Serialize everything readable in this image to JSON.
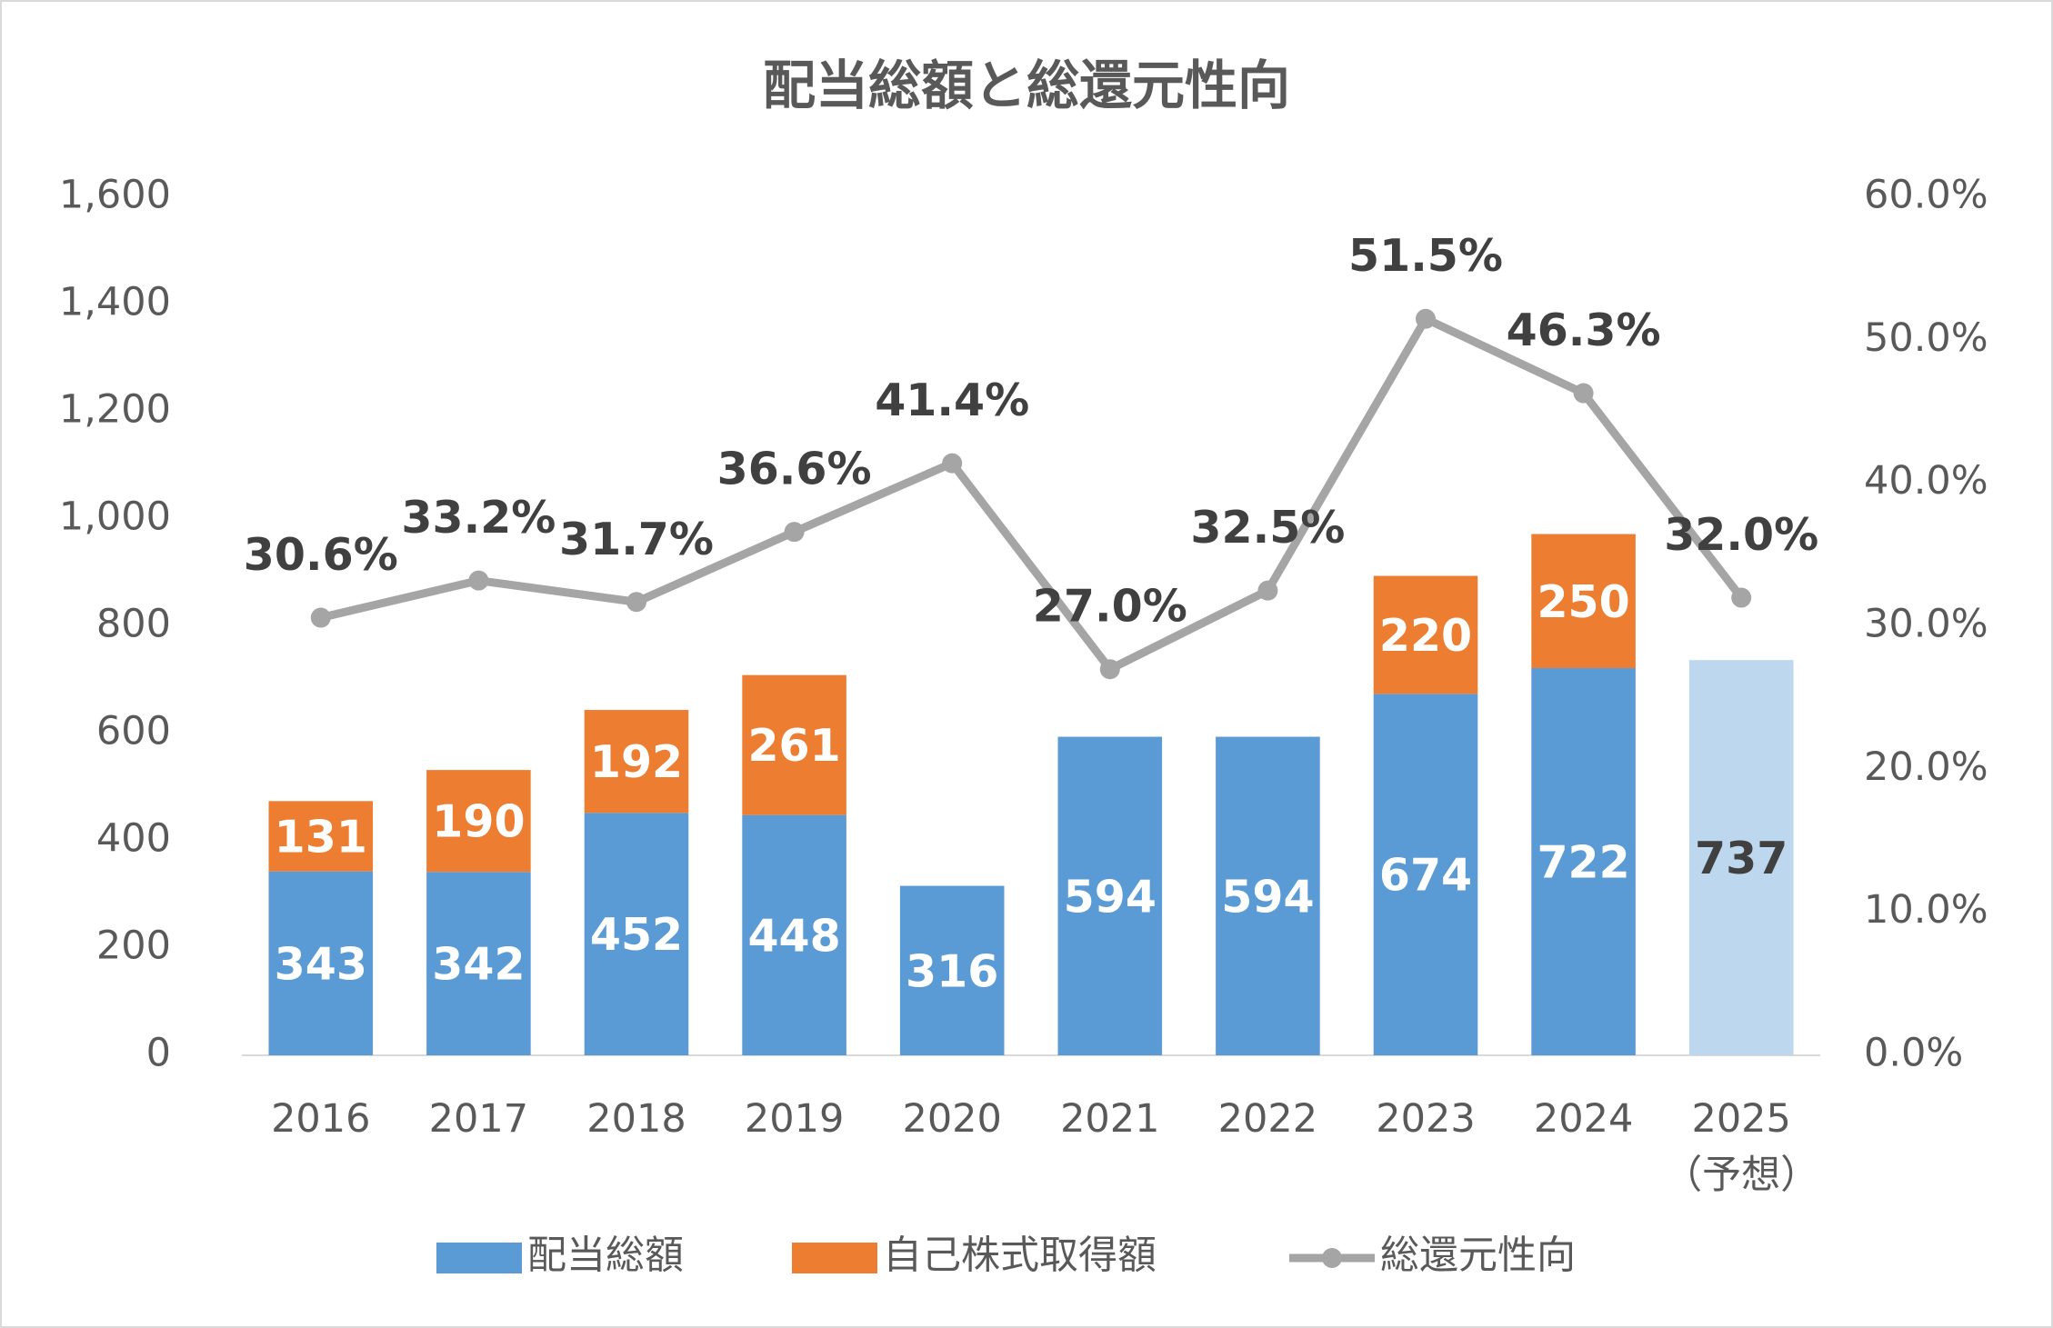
{
  "chart_data": {
    "type": "bar_line",
    "title": "配当総額と総還元性向",
    "categories": [
      "2016",
      "2017",
      "2018",
      "2019",
      "2020",
      "2021",
      "2022",
      "2023",
      "2024",
      "2025\n（予想）"
    ],
    "series": [
      {
        "name": "配当総額",
        "type": "bar",
        "color": "#5b9bd5",
        "colors": [
          "#5b9bd5",
          "#5b9bd5",
          "#5b9bd5",
          "#5b9bd5",
          "#5b9bd5",
          "#5b9bd5",
          "#5b9bd5",
          "#5b9bd5",
          "#5b9bd5",
          "#bdd7ee"
        ],
        "values": [
          343,
          342,
          452,
          448,
          316,
          594,
          594,
          674,
          722,
          737
        ]
      },
      {
        "name": "自己株式取得額",
        "type": "bar",
        "color": "#ed7d31",
        "values": [
          131,
          190,
          192,
          261,
          null,
          null,
          null,
          220,
          250,
          null
        ]
      },
      {
        "name": "総還元性向",
        "type": "line",
        "axis": "y2",
        "color": "#a5a5a5",
        "values": [
          30.6,
          33.2,
          31.7,
          36.6,
          41.4,
          27.0,
          32.5,
          51.5,
          46.3,
          32.0
        ],
        "value_labels": [
          "30.6%",
          "33.2%",
          "31.7%",
          "36.6%",
          "41.4%",
          "27.0%",
          "32.5%",
          "51.5%",
          "46.3%",
          "32.0%"
        ]
      }
    ],
    "ylim": [
      0,
      1600
    ],
    "yticks": [
      0,
      200,
      400,
      600,
      800,
      {
        "value": 1000,
        "label": "1,000"
      },
      {
        "value": 1200,
        "label": "1,200"
      },
      {
        "value": 1400,
        "label": "1,400"
      },
      {
        "value": 1600,
        "label": "1,600"
      }
    ],
    "y2lim": [
      0,
      60
    ],
    "y2ticks": [
      {
        "value": 0,
        "label": "0.0%"
      },
      {
        "value": 10,
        "label": "10.0%"
      },
      {
        "value": 20,
        "label": "20.0%"
      },
      {
        "value": 30,
        "label": "30.0%"
      },
      {
        "value": 40,
        "label": "40.0%"
      },
      {
        "value": 50,
        "label": "50.0%"
      },
      {
        "value": 60,
        "label": "60.0%"
      }
    ],
    "grid": false,
    "legend": "bottom"
  }
}
